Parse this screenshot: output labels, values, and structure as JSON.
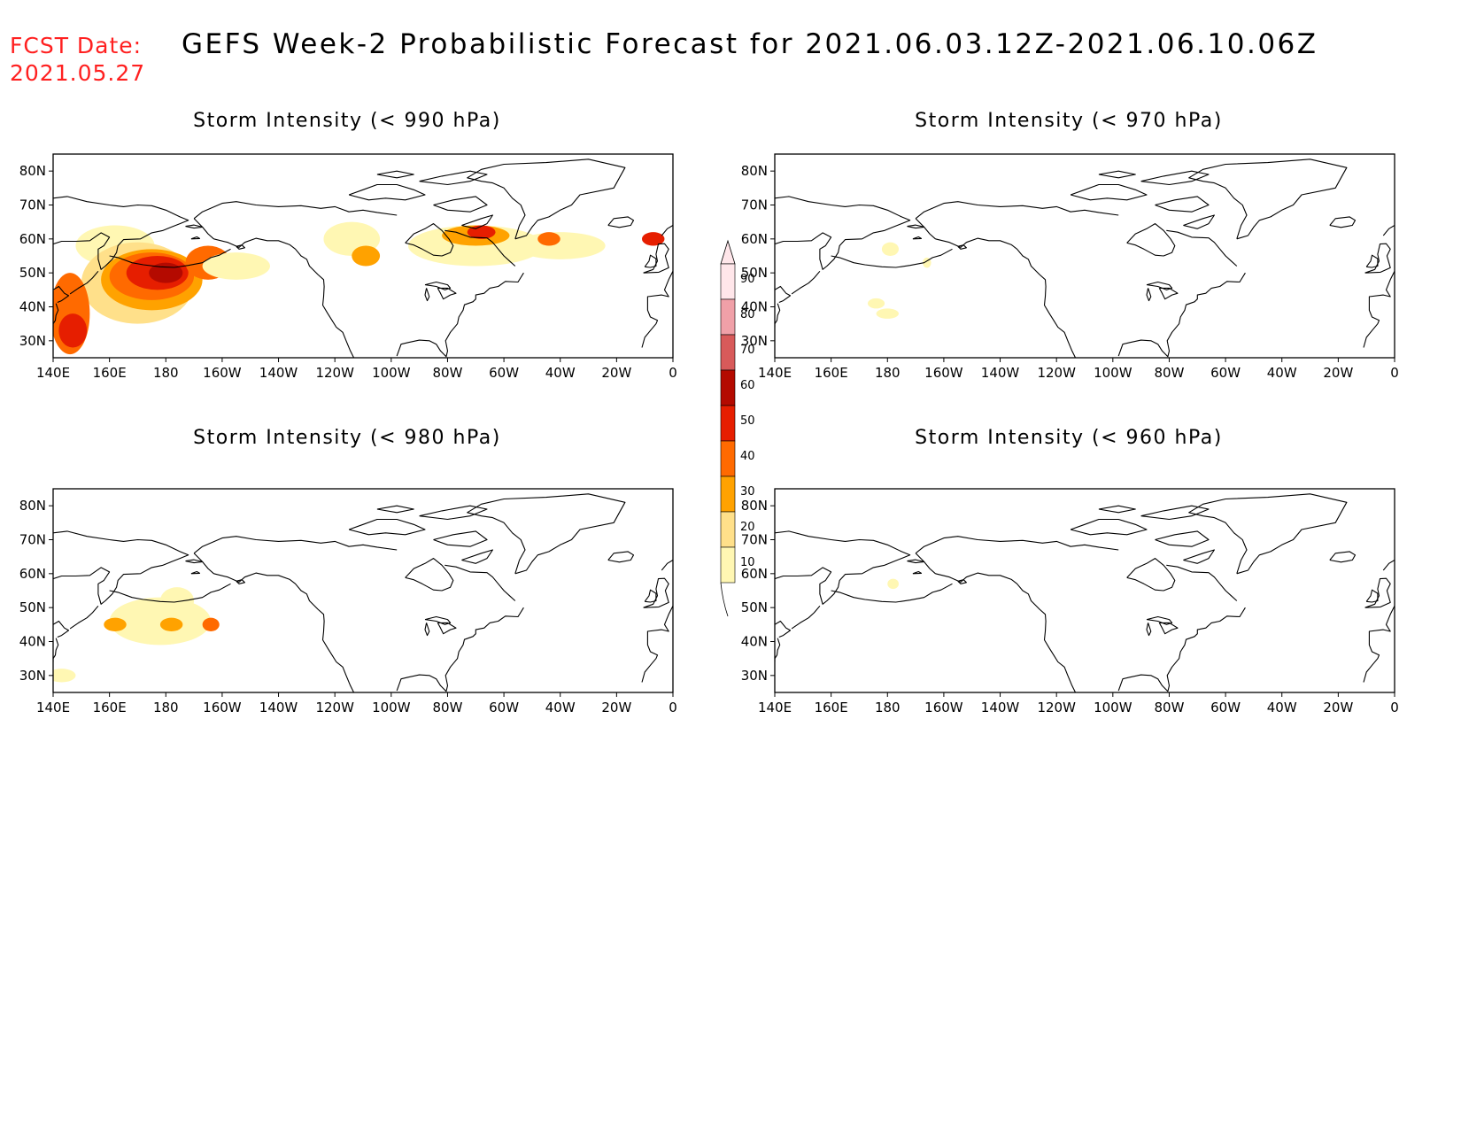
{
  "forecast_date": {
    "label": "FCST Date:",
    "value": "2021.05.27"
  },
  "title": "GEFS Week-2 Probabilistic Forecast for 2021.06.03.12Z-2021.06.10.06Z",
  "axes": {
    "lon_labels": [
      "140E",
      "160E",
      "180",
      "160W",
      "140W",
      "120W",
      "100W",
      "80W",
      "60W",
      "40W",
      "20W",
      "0"
    ],
    "lat_labels": [
      "80N",
      "70N",
      "60N",
      "50N",
      "40N",
      "30N"
    ],
    "lon_range": [
      140,
      360
    ],
    "lat_range": [
      25,
      85
    ]
  },
  "colorbar": {
    "levels": [
      10,
      20,
      30,
      40,
      50,
      60,
      70,
      80,
      90
    ],
    "labels": [
      "10",
      "20",
      "30",
      "40",
      "50",
      "60",
      "70",
      "80",
      "90"
    ],
    "colors": [
      "#fff7b3",
      "#ffe08a",
      "#ffa200",
      "#ff6a00",
      "#e61e00",
      "#b40a00",
      "#d85a5a",
      "#f0a0a8",
      "#ffe6ea"
    ]
  },
  "panels": [
    {
      "title": "Storm Intensity (< 990 hPa)",
      "blobs": [
        {
          "lon": 162,
          "lat": 58,
          "rlon": 14,
          "rlat": 6,
          "level": 10
        },
        {
          "lon": 170,
          "lat": 47,
          "rlon": 20,
          "rlat": 12,
          "level": 20
        },
        {
          "lon": 175,
          "lat": 48,
          "rlon": 18,
          "rlat": 9,
          "level": 30
        },
        {
          "lon": 175,
          "lat": 49,
          "rlon": 15,
          "rlat": 7,
          "level": 40
        },
        {
          "lon": 177,
          "lat": 50,
          "rlon": 11,
          "rlat": 5,
          "level": 50
        },
        {
          "lon": 180,
          "lat": 50,
          "rlon": 6,
          "rlat": 3,
          "level": 60
        },
        {
          "lon": 146,
          "lat": 38,
          "rlon": 7,
          "rlat": 12,
          "level": 40
        },
        {
          "lon": 147,
          "lat": 33,
          "rlon": 5,
          "rlat": 5,
          "level": 50
        },
        {
          "lon": 195,
          "lat": 53,
          "rlon": 8,
          "rlat": 5,
          "level": 40
        },
        {
          "lon": 205,
          "lat": 52,
          "rlon": 12,
          "rlat": 4,
          "level": 10
        },
        {
          "lon": 246,
          "lat": 60,
          "rlon": 10,
          "rlat": 5,
          "level": 10
        },
        {
          "lon": 251,
          "lat": 55,
          "rlon": 5,
          "rlat": 3,
          "level": 30
        },
        {
          "lon": 290,
          "lat": 58,
          "rlon": 24,
          "rlat": 6,
          "level": 10
        },
        {
          "lon": 290,
          "lat": 61,
          "rlon": 12,
          "rlat": 3,
          "level": 30
        },
        {
          "lon": 292,
          "lat": 62,
          "rlon": 5,
          "rlat": 2,
          "level": 50
        },
        {
          "lon": 320,
          "lat": 58,
          "rlon": 16,
          "rlat": 4,
          "level": 10
        },
        {
          "lon": 316,
          "lat": 60,
          "rlon": 4,
          "rlat": 2,
          "level": 40
        },
        {
          "lon": 353,
          "lat": 60,
          "rlon": 4,
          "rlat": 2,
          "level": 50
        }
      ]
    },
    {
      "title": "Storm Intensity (< 970 hPa)",
      "blobs": [
        {
          "lon": 181,
          "lat": 57,
          "rlon": 3,
          "rlat": 2,
          "level": 10
        },
        {
          "lon": 176,
          "lat": 41,
          "rlon": 3,
          "rlat": 1.5,
          "level": 10
        },
        {
          "lon": 180,
          "lat": 38,
          "rlon": 4,
          "rlat": 1.5,
          "level": 10
        },
        {
          "lon": 194,
          "lat": 53,
          "rlon": 1.5,
          "rlat": 1.5,
          "level": 10
        }
      ]
    },
    {
      "title": "Storm Intensity (< 980 hPa)",
      "blobs": [
        {
          "lon": 178,
          "lat": 46,
          "rlon": 18,
          "rlat": 7,
          "level": 10
        },
        {
          "lon": 184,
          "lat": 52,
          "rlon": 6,
          "rlat": 4,
          "level": 10
        },
        {
          "lon": 162,
          "lat": 45,
          "rlon": 4,
          "rlat": 2,
          "level": 30
        },
        {
          "lon": 182,
          "lat": 45,
          "rlon": 4,
          "rlat": 2,
          "level": 30
        },
        {
          "lon": 196,
          "lat": 45,
          "rlon": 3,
          "rlat": 2,
          "level": 40
        },
        {
          "lon": 143,
          "lat": 30,
          "rlon": 5,
          "rlat": 2,
          "level": 10
        }
      ]
    },
    {
      "title": "Storm Intensity (< 960 hPa)",
      "blobs": [
        {
          "lon": 182,
          "lat": 57,
          "rlon": 2,
          "rlat": 1.5,
          "level": 10
        }
      ]
    }
  ]
}
